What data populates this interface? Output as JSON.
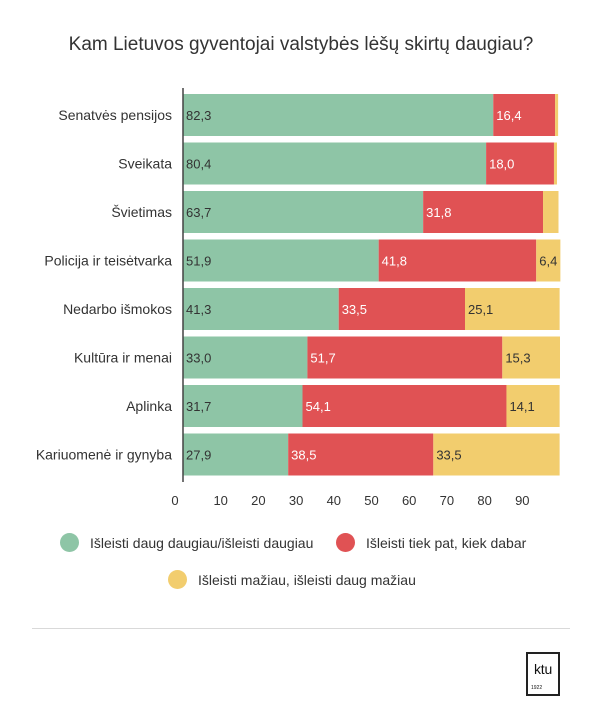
{
  "chart_data": {
    "type": "bar",
    "orientation": "horizontal",
    "stacked": true,
    "title": "Kam Lietuvos gyventojai valstybės lėšų skirtų daugiau?",
    "categories": [
      "Senatvės pensijos",
      "Sveikata",
      "Švietimas",
      "Policija ir teisėtvarka",
      "Nedarbo išmokos",
      "Kultūra ir menai",
      "Aplinka",
      "Kariuomenė ir gynyba"
    ],
    "series": [
      {
        "name": "Išleisti daug daugiau/išleisti daugiau",
        "color": "#8ec5a6",
        "values": [
          82.3,
          80.4,
          63.7,
          51.9,
          41.3,
          33.0,
          31.7,
          27.9
        ],
        "labels": [
          "82,3",
          "80,4",
          "63,7",
          "51,9",
          "41,3",
          "33,0",
          "31,7",
          "27,9"
        ]
      },
      {
        "name": "Išleisti tiek pat, kiek dabar",
        "color": "#e05254",
        "values": [
          16.4,
          18.0,
          31.8,
          41.8,
          33.5,
          51.7,
          54.1,
          38.5
        ],
        "labels": [
          "16,4",
          "18,0",
          "31,8",
          "41,8",
          "33,5",
          "51,7",
          "54,1",
          "38,5"
        ]
      },
      {
        "name": "Išleisti mažiau, išleisti daug mažiau",
        "color": "#f2cd6e",
        "values": [
          0.8,
          0.8,
          4.1,
          6.4,
          25.1,
          15.3,
          14.1,
          33.5
        ],
        "labels": [
          "",
          "",
          "",
          "6,4",
          "25,1",
          "15,3",
          "14,1",
          "33,5"
        ]
      }
    ],
    "xlim": [
      0,
      100
    ],
    "xticks": [
      0,
      10,
      20,
      30,
      40,
      50,
      60,
      70,
      80,
      90
    ],
    "legend_position": "bottom",
    "grid": false
  },
  "logo": {
    "text": "ktu",
    "year": "1922"
  }
}
